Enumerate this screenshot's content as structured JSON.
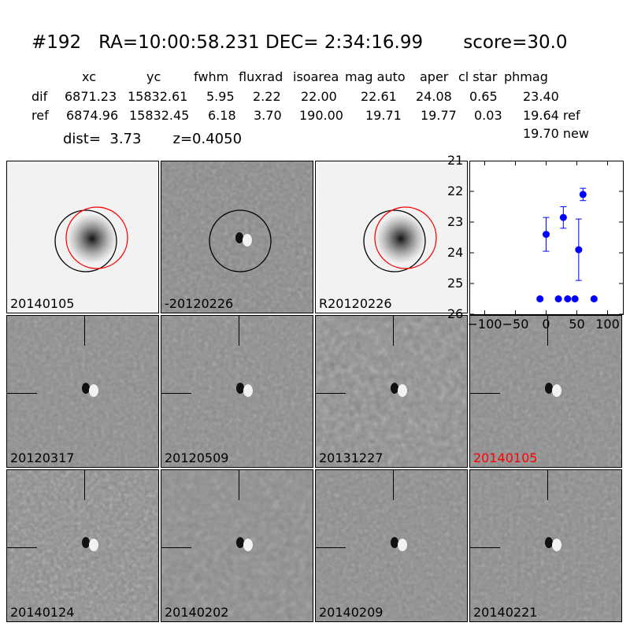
{
  "title": "#192   RA=10:00:58.231 DEC= 2:34:16.99       score=30.0",
  "table": {
    "headers": [
      "xc",
      "yc",
      "fwhm",
      "fluxrad",
      "isoarea",
      "mag auto",
      "aper",
      "cl star",
      "phmag"
    ],
    "rows": [
      {
        "label": "dif",
        "values": [
          "6871.23",
          "15832.61",
          "5.95",
          "2.22",
          "22.00",
          "22.61",
          "24.08",
          "0.65",
          "23.40"
        ]
      },
      {
        "label": "ref",
        "values": [
          "6874.96",
          "15832.45",
          "6.18",
          "3.70",
          "190.00",
          "19.71",
          "19.77",
          "0.03",
          "19.64 ref"
        ]
      }
    ],
    "new_mag": "19.70 new"
  },
  "dist_line": "dist=  3.73       z=0.4050",
  "panels": [
    {
      "label": "20140105",
      "label_color": "#000000",
      "kind": "ref"
    },
    {
      "label": "-20120226",
      "label_color": "#000000",
      "kind": "dif"
    },
    {
      "label": "R20120226",
      "label_color": "#000000",
      "kind": "ref"
    },
    {
      "label": "20120317",
      "label_color": "#000000",
      "kind": "stamp"
    },
    {
      "label": "20120509",
      "label_color": "#000000",
      "kind": "stamp"
    },
    {
      "label": "20131227",
      "label_color": "#000000",
      "kind": "stamp"
    },
    {
      "label": "20140105",
      "label_color": "#ff0000",
      "kind": "stamp"
    },
    {
      "label": "20140124",
      "label_color": "#000000",
      "kind": "stamp"
    },
    {
      "label": "20140202",
      "label_color": "#000000",
      "kind": "stamp"
    },
    {
      "label": "20140209",
      "label_color": "#000000",
      "kind": "stamp"
    },
    {
      "label": "20140221",
      "label_color": "#000000",
      "kind": "stamp"
    }
  ],
  "chart_data": {
    "type": "scatter",
    "title": "",
    "xlabel": "",
    "ylabel": "",
    "xlim": [
      -125,
      125
    ],
    "ylim": [
      26,
      21
    ],
    "inverted_y": true,
    "x_ticks": [
      "−100",
      "−50",
      "0",
      "50",
      "100"
    ],
    "x_tick_values": [
      -100,
      -50,
      0,
      50,
      100
    ],
    "y_ticks": [
      "21",
      "22",
      "23",
      "24",
      "25",
      "26"
    ],
    "y_tick_values": [
      21,
      22,
      23,
      24,
      25,
      26
    ],
    "marker_color": "#0000ff",
    "points": [
      {
        "x": -10,
        "y": 25.5,
        "err": 0
      },
      {
        "x": 0,
        "y": 23.4,
        "err": 0.55
      },
      {
        "x": 20,
        "y": 25.5,
        "err": 0
      },
      {
        "x": 28,
        "y": 22.85,
        "err": 0.35
      },
      {
        "x": 35,
        "y": 25.5,
        "err": 0
      },
      {
        "x": 47,
        "y": 25.5,
        "err": 0
      },
      {
        "x": 53,
        "y": 23.9,
        "err": 1.0
      },
      {
        "x": 60,
        "y": 22.1,
        "err": 0.2
      },
      {
        "x": 78,
        "y": 25.5,
        "err": 0
      }
    ]
  }
}
